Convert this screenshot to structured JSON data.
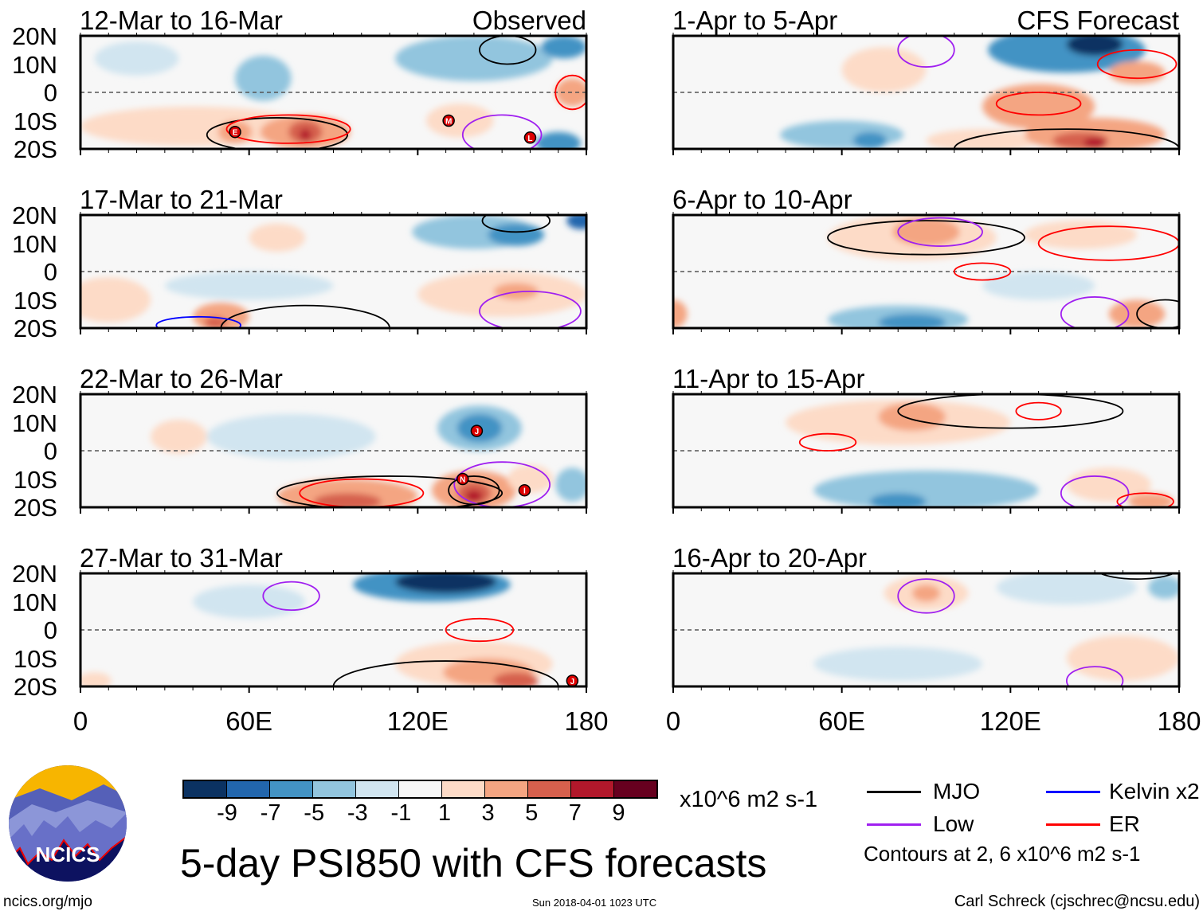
{
  "header": {
    "observed_label": "Observed",
    "forecast_label": "CFS Forecast"
  },
  "lat_ticks": [
    "20N",
    "10N",
    "0",
    "10S",
    "20S"
  ],
  "lon_ticks": [
    "0",
    "60E",
    "120E",
    "180"
  ],
  "colorbar": {
    "colors": [
      "#0b3262",
      "#2266ad",
      "#4393c4",
      "#92c5de",
      "#d1e5f0",
      "#f7f7f7",
      "#fddbc7",
      "#f4a582",
      "#d6604d",
      "#b2182b",
      "#67001f"
    ],
    "labels": [
      "-9",
      "-7",
      "-5",
      "-3",
      "-1",
      "1",
      "3",
      "5",
      "7",
      "9"
    ],
    "units": "x10^6 m2 s-1"
  },
  "legend": {
    "items": [
      {
        "label": "MJO",
        "color": "#000000"
      },
      {
        "label": "Kelvin x2",
        "color": "#0000ff"
      },
      {
        "label": "Low",
        "color": "#a020f0"
      },
      {
        "label": "ER",
        "color": "#ff0000"
      }
    ],
    "note": "Contours at 2, 6 x10^6 m2 s-1"
  },
  "footer": {
    "title": "5-day PSI850 with CFS forecasts",
    "url": "ncics.org/mjo",
    "timestamp": "Sun 2018-04-01 1023 UTC",
    "author": "Carl Schreck (cjschrec@ncsu.edu)",
    "logo_text": "NCICS"
  },
  "chart_data": {
    "type": "heatmap",
    "title": "5-day PSI850 with CFS forecasts",
    "xlim": [
      0,
      180
    ],
    "ylim": [
      -20,
      20
    ],
    "panels": [
      {
        "title": "12-Mar to 16-Mar",
        "kind": "Observed",
        "blobs": [
          [
            40,
            -12,
            40,
            7,
            3
          ],
          [
            65,
            5,
            10,
            8,
            -3
          ],
          [
            140,
            12,
            28,
            8,
            -3
          ],
          [
            172,
            16,
            8,
            4,
            -5
          ],
          [
            170,
            -18,
            8,
            4,
            -5
          ],
          [
            80,
            -14,
            16,
            6,
            5
          ],
          [
            80,
            -14,
            6,
            4,
            7
          ],
          [
            80,
            -15,
            2,
            2,
            9
          ],
          [
            55,
            -14,
            6,
            4,
            5
          ],
          [
            135,
            -10,
            12,
            6,
            3
          ],
          [
            175,
            0,
            6,
            5,
            5
          ],
          [
            20,
            12,
            15,
            6,
            -1
          ]
        ],
        "contours": [
          [
            70,
            -15,
            25,
            6,
            "MJO"
          ],
          [
            74,
            -13,
            22,
            5,
            "ER"
          ],
          [
            152,
            15,
            10,
            5,
            "MJO"
          ],
          [
            175,
            0,
            6,
            6,
            "ER"
          ],
          [
            150,
            -15,
            14,
            7,
            "Low"
          ]
        ],
        "storms": [
          [
            55,
            -14,
            "E"
          ],
          [
            131,
            -10,
            "M"
          ],
          [
            160,
            -16,
            "L"
          ]
        ]
      },
      {
        "title": "17-Mar to 21-Mar",
        "kind": "Observed",
        "blobs": [
          [
            10,
            -10,
            15,
            8,
            3
          ],
          [
            60,
            -5,
            30,
            5,
            -1
          ],
          [
            70,
            12,
            10,
            5,
            3
          ],
          [
            140,
            14,
            22,
            6,
            -3
          ],
          [
            155,
            13,
            10,
            4,
            -5
          ],
          [
            178,
            18,
            5,
            3,
            -7
          ],
          [
            50,
            -16,
            10,
            5,
            5
          ],
          [
            48,
            -18,
            4,
            2,
            7
          ],
          [
            150,
            -8,
            30,
            8,
            3
          ],
          [
            155,
            -7,
            8,
            3,
            5
          ]
        ],
        "contours": [
          [
            80,
            -20,
            30,
            8,
            "MJO"
          ],
          [
            42,
            -19,
            15,
            3,
            "Kelvin"
          ],
          [
            155,
            18,
            12,
            4,
            "MJO"
          ],
          [
            160,
            -14,
            18,
            7,
            "Low"
          ]
        ],
        "storms": []
      },
      {
        "title": "22-Mar to 26-Mar",
        "kind": "Observed",
        "blobs": [
          [
            75,
            5,
            30,
            8,
            -1
          ],
          [
            35,
            5,
            10,
            6,
            3
          ],
          [
            142,
            8,
            15,
            8,
            -3
          ],
          [
            142,
            8,
            8,
            5,
            -5
          ],
          [
            95,
            -16,
            25,
            6,
            5
          ],
          [
            95,
            -18,
            12,
            3,
            7
          ],
          [
            140,
            -14,
            15,
            7,
            5
          ],
          [
            140,
            -15,
            6,
            4,
            7
          ],
          [
            140,
            -16,
            3,
            2,
            9
          ],
          [
            160,
            -10,
            8,
            5,
            3
          ],
          [
            175,
            -12,
            6,
            6,
            -3
          ]
        ],
        "contours": [
          [
            110,
            -15,
            40,
            6,
            "MJO"
          ],
          [
            100,
            -15,
            22,
            5,
            "ER"
          ],
          [
            150,
            -12,
            17,
            8,
            "Low"
          ],
          [
            140,
            -14,
            9,
            5,
            "MJO"
          ]
        ],
        "storms": [
          [
            141,
            7,
            "J"
          ],
          [
            136,
            -10,
            "N"
          ],
          [
            158,
            -14,
            "I"
          ]
        ]
      },
      {
        "title": "27-Mar to 31-Mar",
        "kind": "Observed",
        "blobs": [
          [
            60,
            10,
            20,
            6,
            -1
          ],
          [
            5,
            -18,
            6,
            3,
            3
          ],
          [
            125,
            16,
            28,
            6,
            -5
          ],
          [
            130,
            17,
            18,
            4,
            -9
          ],
          [
            140,
            -12,
            28,
            8,
            3
          ],
          [
            145,
            -15,
            16,
            5,
            5
          ],
          [
            155,
            -18,
            8,
            3,
            7
          ]
        ],
        "contours": [
          [
            130,
            -20,
            40,
            9,
            "MJO"
          ],
          [
            142,
            0,
            12,
            4,
            "ER"
          ],
          [
            75,
            12,
            10,
            5,
            "Low"
          ]
        ],
        "storms": [
          [
            175,
            -18,
            "J"
          ]
        ]
      },
      {
        "title": "1-Apr to 5-Apr",
        "kind": "CFS Forecast",
        "blobs": [
          [
            75,
            8,
            15,
            8,
            3
          ],
          [
            60,
            -15,
            22,
            5,
            -3
          ],
          [
            70,
            -17,
            6,
            3,
            -5
          ],
          [
            140,
            15,
            28,
            8,
            -5
          ],
          [
            150,
            17,
            10,
            4,
            -9
          ],
          [
            130,
            -5,
            20,
            8,
            5
          ],
          [
            110,
            -17,
            20,
            4,
            3
          ],
          [
            150,
            -15,
            25,
            6,
            5
          ],
          [
            145,
            -17,
            10,
            3,
            7
          ],
          [
            150,
            -18,
            4,
            2,
            9
          ],
          [
            165,
            7,
            10,
            4,
            5
          ]
        ],
        "contours": [
          [
            130,
            -4,
            15,
            4,
            "ER"
          ],
          [
            140,
            -20,
            40,
            7,
            "MJO"
          ],
          [
            165,
            10,
            14,
            5,
            "ER"
          ],
          [
            90,
            15,
            10,
            6,
            "Low"
          ]
        ],
        "storms": []
      },
      {
        "title": "6-Apr to 10-Apr",
        "kind": "CFS Forecast",
        "blobs": [
          [
            85,
            12,
            30,
            8,
            3
          ],
          [
            90,
            14,
            12,
            5,
            5
          ],
          [
            80,
            -17,
            25,
            5,
            -3
          ],
          [
            85,
            -18,
            12,
            3,
            -5
          ],
          [
            145,
            13,
            20,
            5,
            3
          ],
          [
            130,
            -5,
            20,
            5,
            -1
          ],
          [
            165,
            -15,
            10,
            5,
            5
          ],
          [
            0,
            -15,
            5,
            5,
            5
          ]
        ],
        "contours": [
          [
            90,
            12,
            35,
            6,
            "MJO"
          ],
          [
            95,
            14,
            15,
            5,
            "Low"
          ],
          [
            155,
            10,
            25,
            6,
            "ER"
          ],
          [
            110,
            0,
            10,
            3,
            "ER"
          ],
          [
            150,
            -15,
            12,
            6,
            "Low"
          ],
          [
            175,
            -15,
            10,
            5,
            "MJO"
          ]
        ],
        "storms": []
      },
      {
        "title": "11-Apr to 15-Apr",
        "kind": "CFS Forecast",
        "blobs": [
          [
            80,
            10,
            40,
            8,
            3
          ],
          [
            85,
            12,
            12,
            5,
            5
          ],
          [
            90,
            -14,
            40,
            7,
            -3
          ],
          [
            80,
            -18,
            10,
            3,
            -5
          ],
          [
            155,
            -12,
            15,
            6,
            3
          ],
          [
            170,
            -18,
            8,
            3,
            5
          ]
        ],
        "contours": [
          [
            120,
            14,
            40,
            6,
            "MJO"
          ],
          [
            55,
            3,
            10,
            3,
            "ER"
          ],
          [
            130,
            14,
            8,
            3,
            "ER"
          ],
          [
            150,
            -15,
            12,
            6,
            "Low"
          ],
          [
            168,
            -18,
            10,
            3,
            "ER"
          ]
        ],
        "storms": []
      },
      {
        "title": "16-Apr to 20-Apr",
        "kind": "CFS Forecast",
        "blobs": [
          [
            90,
            13,
            15,
            6,
            3
          ],
          [
            90,
            13,
            5,
            3,
            5
          ],
          [
            140,
            15,
            25,
            6,
            -1
          ],
          [
            175,
            15,
            6,
            4,
            -3
          ],
          [
            80,
            -12,
            30,
            6,
            -1
          ],
          [
            160,
            -10,
            20,
            8,
            3
          ]
        ],
        "contours": [
          [
            165,
            22,
            15,
            4,
            "MJO"
          ],
          [
            90,
            12,
            10,
            6,
            "Low"
          ],
          [
            150,
            -18,
            10,
            5,
            "Low"
          ]
        ],
        "storms": []
      }
    ]
  }
}
